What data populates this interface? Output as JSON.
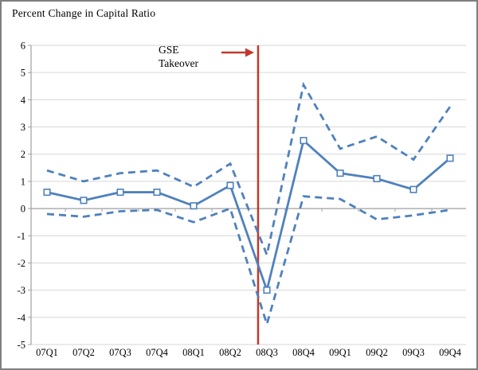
{
  "title": "Percent Change in Capital Ratio",
  "annotation": {
    "line1": "GSE",
    "line2": "Takeover"
  },
  "chart_data": {
    "type": "line",
    "title": "Percent Change in Capital Ratio",
    "categories": [
      "07Q1",
      "07Q2",
      "07Q3",
      "07Q4",
      "08Q1",
      "08Q2",
      "08Q3",
      "08Q4",
      "09Q1",
      "09Q2",
      "09Q3",
      "09Q4"
    ],
    "series": [
      {
        "name": "percent-change-capital-ratio",
        "style": "solid",
        "marker": "square",
        "values": [
          0.6,
          0.3,
          0.6,
          0.6,
          0.1,
          0.85,
          -3.0,
          2.5,
          1.3,
          1.1,
          0.7,
          1.85
        ]
      },
      {
        "name": "upper-band",
        "style": "dashed",
        "marker": "none",
        "values": [
          1.4,
          1.0,
          1.3,
          1.4,
          0.8,
          1.65,
          -1.7,
          4.55,
          2.2,
          2.65,
          1.8,
          3.75
        ]
      },
      {
        "name": "lower-band",
        "style": "dashed",
        "marker": "none",
        "values": [
          -0.2,
          -0.3,
          -0.1,
          -0.05,
          -0.5,
          0.0,
          -4.25,
          0.45,
          0.35,
          -0.4,
          -0.25,
          -0.05
        ]
      }
    ],
    "ylim": [
      -5,
      6
    ],
    "y_ticks": [
      6,
      5,
      4,
      3,
      2,
      1,
      0,
      -1,
      -2,
      -3,
      -4,
      -5
    ],
    "grid": true,
    "legend": "none",
    "annotation_text": "GSE Takeover",
    "vline": {
      "x_index": 5.76
    },
    "colors": {
      "series_blue": "#4f81bd",
      "vline_red": "#c0392b",
      "arrow_red": "#c0392b",
      "gridline": "#d6d6d6",
      "axis": "#a0a0a0",
      "text": "#000000",
      "marker_fill": "#ffffff"
    }
  }
}
